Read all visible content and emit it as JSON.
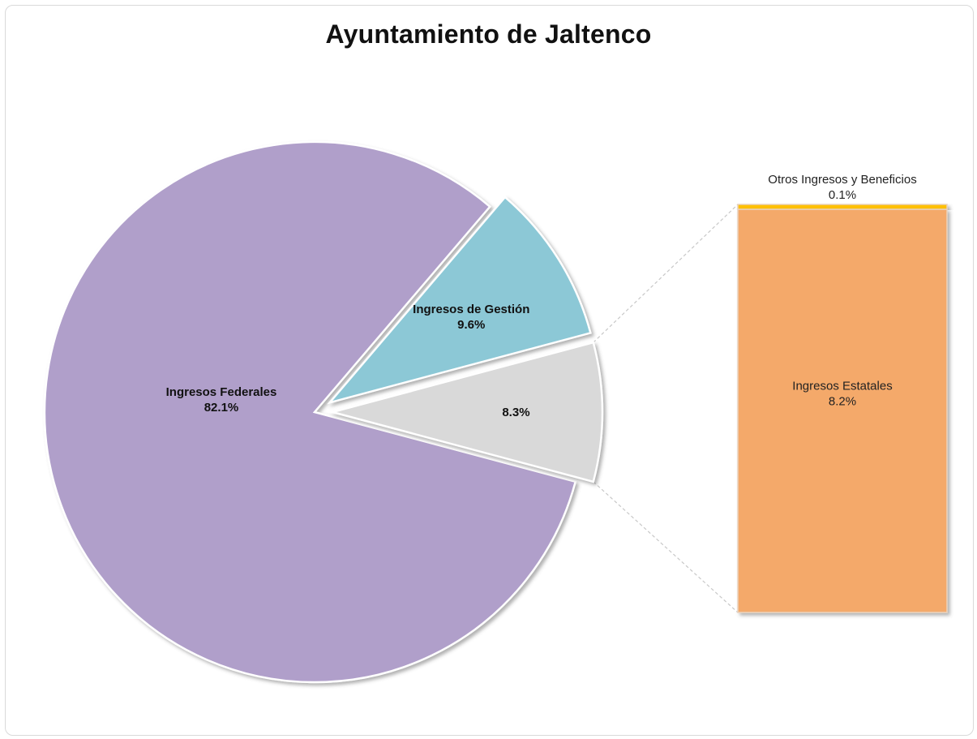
{
  "chart_data": {
    "type": "pie",
    "subtype": "bar-of-pie",
    "title": "Ayuntamiento de Jaltenco",
    "slices": [
      {
        "label": "Ingresos Federales",
        "value": 82.1,
        "value_label": "82.1%",
        "color": "#b09fca",
        "show_label": true
      },
      {
        "label": "Ingresos de Gestión",
        "value": 9.6,
        "value_label": "9.6%",
        "color": "#8cc8d6",
        "show_label": true
      },
      {
        "label": "",
        "value": 8.3,
        "value_label": "8.3%",
        "color": "#d9d9d9",
        "show_label": false
      }
    ],
    "secondary_bar": [
      {
        "label": "Otros Ingresos y Beneficios",
        "value": 0.1,
        "value_label": "0.1%",
        "color": "#ffc000"
      },
      {
        "label": "Ingresos Estatales",
        "value": 8.2,
        "value_label": "8.2%",
        "color": "#f4a96a"
      }
    ]
  }
}
